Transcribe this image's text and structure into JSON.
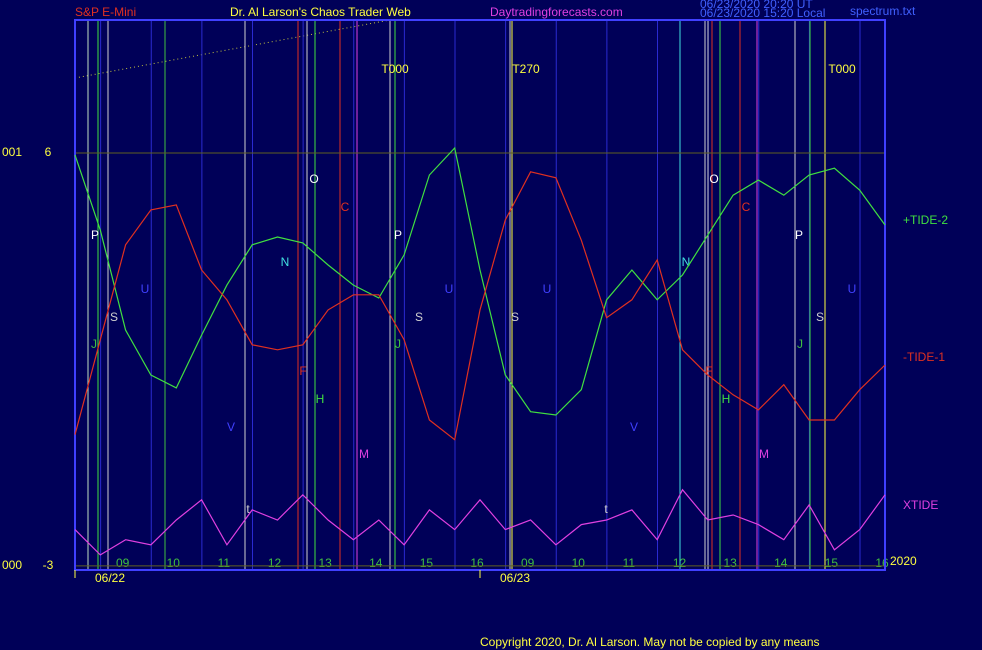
{
  "chart_data": {
    "type": "line",
    "header": {
      "symbol": "S&P E-Mini",
      "title": "Dr. Al Larson's Chaos Trader Web",
      "site": "Daytradingforecasts.com",
      "time_ut": "06/23/2020 20:20 UT",
      "time_local": "06/23/2020 15:20 Local",
      "file": "spectrum.txt"
    },
    "x": [
      0,
      0.5,
      1,
      1.5,
      2,
      2.5,
      3,
      3.5,
      4,
      4.5,
      5,
      5.5,
      6,
      6.5,
      7,
      7.5,
      8,
      8.5,
      9,
      9.5,
      10,
      10.5,
      11,
      11.5,
      12,
      12.5,
      13,
      13.5,
      14,
      14.5,
      15,
      15.5,
      16
    ],
    "xlim": [
      0,
      16
    ],
    "xticks": [
      {
        "value": 1,
        "label": "09"
      },
      {
        "value": 2,
        "label": "10"
      },
      {
        "value": 3,
        "label": "11"
      },
      {
        "value": 4,
        "label": "12"
      },
      {
        "value": 5,
        "label": "13"
      },
      {
        "value": 6,
        "label": "14"
      },
      {
        "value": 7,
        "label": "15"
      },
      {
        "value": 8,
        "label": "16"
      },
      {
        "value": 9,
        "label": "09"
      },
      {
        "value": 10,
        "label": "10"
      },
      {
        "value": 11,
        "label": "11"
      },
      {
        "value": 12,
        "label": "12"
      },
      {
        "value": 13,
        "label": "13"
      },
      {
        "value": 14,
        "label": "14"
      },
      {
        "value": 15,
        "label": "15"
      },
      {
        "value": 16,
        "label": "16"
      }
    ],
    "dates": [
      {
        "value": 0,
        "label": "06/22"
      },
      {
        "value": 8,
        "label": "06/23"
      }
    ],
    "ylim": [
      -3.09,
      8.9
    ],
    "yticks": [
      6,
      -3
    ],
    "ytick_prefixes": [
      "001",
      "000"
    ],
    "year": "2020",
    "series": [
      {
        "name": "+TIDE-2",
        "color": "#40e040",
        "values": [
          5.96,
          4.32,
          2.14,
          1.16,
          0.88,
          2.03,
          3.12,
          4.0,
          4.17,
          4.04,
          3.56,
          3.12,
          2.84,
          3.78,
          5.52,
          6.11,
          3.45,
          1.16,
          0.36,
          0.29,
          0.84,
          2.8,
          3.45,
          2.8,
          3.34,
          4.21,
          5.08,
          5.41,
          5.08,
          5.52,
          5.67,
          5.19,
          4.43
        ]
      },
      {
        "name": "-TIDE-1",
        "color": "#e03020",
        "values": [
          -0.14,
          1.93,
          4.0,
          4.76,
          4.87,
          3.45,
          2.8,
          1.82,
          1.71,
          1.82,
          2.58,
          2.91,
          2.91,
          1.93,
          0.18,
          -0.25,
          2.58,
          4.54,
          5.59,
          5.46,
          4.1,
          2.41,
          2.8,
          3.67,
          1.71,
          1.16,
          0.73,
          0.4,
          0.95,
          0.18,
          0.18,
          0.84,
          1.38
        ]
      },
      {
        "name": "XTIDE",
        "color": "#e040e0",
        "values": [
          -2.21,
          -2.76,
          -2.43,
          -2.54,
          -2.0,
          -1.56,
          -2.54,
          -1.78,
          -2.0,
          -1.45,
          -2.0,
          -2.43,
          -2.0,
          -2.54,
          -1.78,
          -2.21,
          -1.56,
          -2.21,
          -2.0,
          -2.54,
          -2.1,
          -2.0,
          -1.78,
          -2.43,
          -1.34,
          -2.0,
          -1.89,
          -2.1,
          -2.43,
          -1.67,
          -2.65,
          -2.21,
          -1.45
        ]
      }
    ],
    "annotations": [
      {
        "text": "T000",
        "color": "#ffff40"
      },
      {
        "text": "T270",
        "color": "#ffff40"
      },
      {
        "text": "T000",
        "color": "#ffff40"
      },
      {
        "text": "P",
        "color": "#ffffff"
      },
      {
        "text": "S",
        "color": "#d0d0d0"
      },
      {
        "text": "U",
        "color": "#4040ff"
      },
      {
        "text": "J",
        "color": "#40c040"
      },
      {
        "text": "N",
        "color": "#40e0e0"
      },
      {
        "text": "O",
        "color": "#ffffff"
      },
      {
        "text": "C",
        "color": "#e03020"
      },
      {
        "text": "F",
        "color": "#e03020"
      },
      {
        "text": "H",
        "color": "#40e040"
      },
      {
        "text": "M",
        "color": "#e040e0"
      },
      {
        "text": "V",
        "color": "#4040ff"
      },
      {
        "text": "t",
        "color": "#d0d0d0"
      },
      {
        "text": "P",
        "color": "#ffffff"
      },
      {
        "text": "S",
        "color": "#d0d0d0"
      },
      {
        "text": "U",
        "color": "#4040ff"
      },
      {
        "text": "J",
        "color": "#40c040"
      },
      {
        "text": "S",
        "color": "#d0d0d0"
      },
      {
        "text": "U",
        "color": "#4040ff"
      },
      {
        "text": "V",
        "color": "#4040ff"
      },
      {
        "text": "t",
        "color": "#d0d0d0"
      },
      {
        "text": "N",
        "color": "#40e0e0"
      },
      {
        "text": "O",
        "color": "#ffffff"
      },
      {
        "text": "C",
        "color": "#e03020"
      },
      {
        "text": "F",
        "color": "#e03020"
      },
      {
        "text": "H",
        "color": "#40e040"
      },
      {
        "text": "M",
        "color": "#e040e0"
      },
      {
        "text": "P",
        "color": "#ffffff"
      },
      {
        "text": "S",
        "color": "#d0d0d0"
      },
      {
        "text": "U",
        "color": "#4040ff"
      },
      {
        "text": "J",
        "color": "#40c040"
      }
    ],
    "copyright": "Copyright 2020, Dr. Al Larson. May not be copied by any means"
  }
}
